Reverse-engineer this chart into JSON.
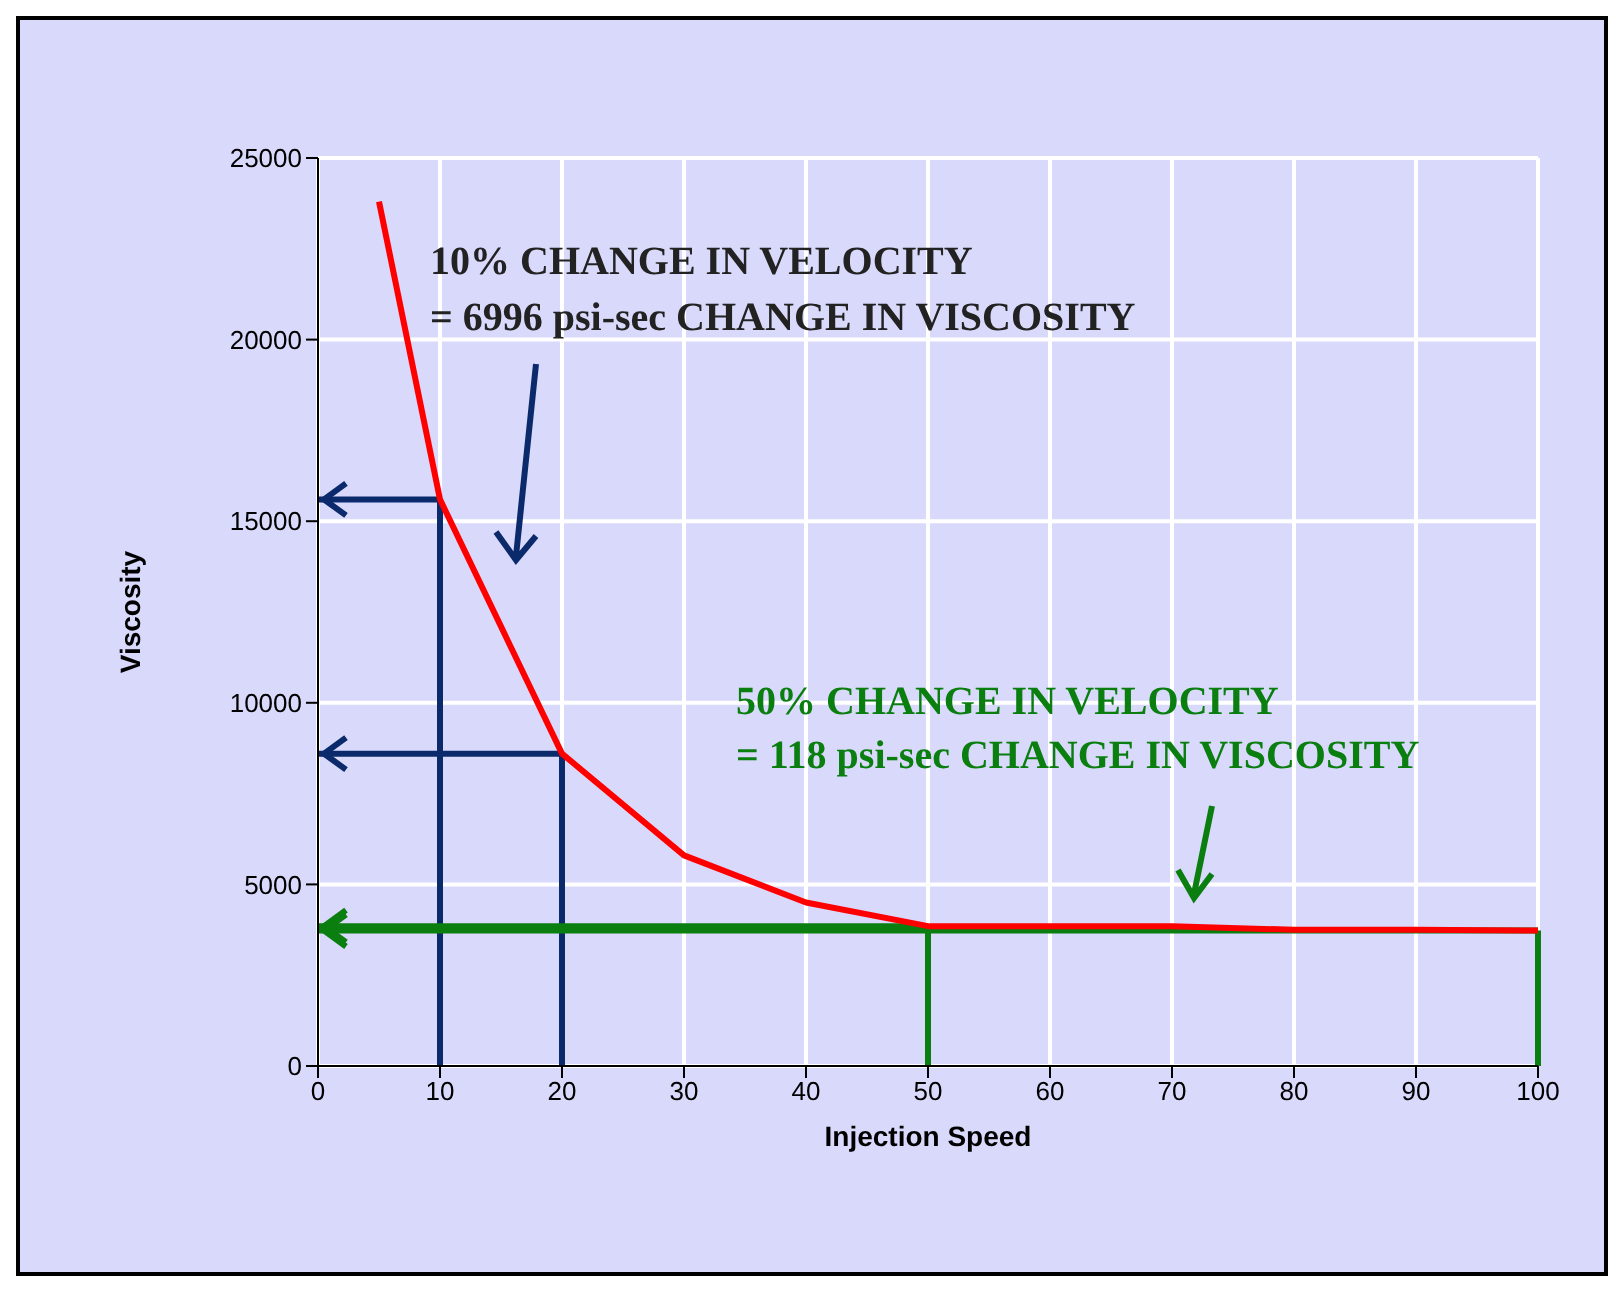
{
  "chart_data": {
    "type": "line",
    "xlabel": "Injection Speed",
    "ylabel": "Viscosity",
    "x": [
      5,
      10,
      20,
      30,
      40,
      50,
      60,
      70,
      80,
      90,
      100
    ],
    "series": [
      {
        "color": "#ff0000",
        "values": [
          23800,
          15600,
          8600,
          5800,
          4500,
          3850,
          3850,
          3850,
          3750,
          3750,
          3730
        ]
      }
    ],
    "xlim": [
      0,
      100
    ],
    "xticks": [
      0,
      10,
      20,
      30,
      40,
      50,
      60,
      70,
      80,
      90,
      100
    ],
    "ylim": [
      0,
      25000
    ],
    "yticks": [
      0,
      5000,
      10000,
      15000,
      20000,
      25000
    ],
    "grid": true,
    "ref_lines": [
      {
        "axis": "x",
        "value": 10,
        "color": "#0b2a6b"
      },
      {
        "axis": "x",
        "value": 20,
        "color": "#0b2a6b"
      },
      {
        "axis": "y",
        "value": 15600,
        "color": "#0b2a6b"
      },
      {
        "axis": "y",
        "value": 8600,
        "color": "#0b2a6b"
      },
      {
        "axis": "x",
        "value": 50,
        "color": "#0a7f10"
      },
      {
        "axis": "x",
        "value": 100,
        "color": "#0a7f10"
      },
      {
        "axis": "y",
        "value": 3850,
        "color": "#0a7f10"
      },
      {
        "axis": "y",
        "value": 3730,
        "color": "#0a7f10"
      }
    ],
    "annotations": [
      "10% CHANGE IN VELOCITY",
      "= 6996 psi-sec CHANGE IN VISCOSITY",
      "50% CHANGE IN VELOCITY",
      "= 118 psi-sec CHANGE IN VISCOSITY"
    ]
  }
}
